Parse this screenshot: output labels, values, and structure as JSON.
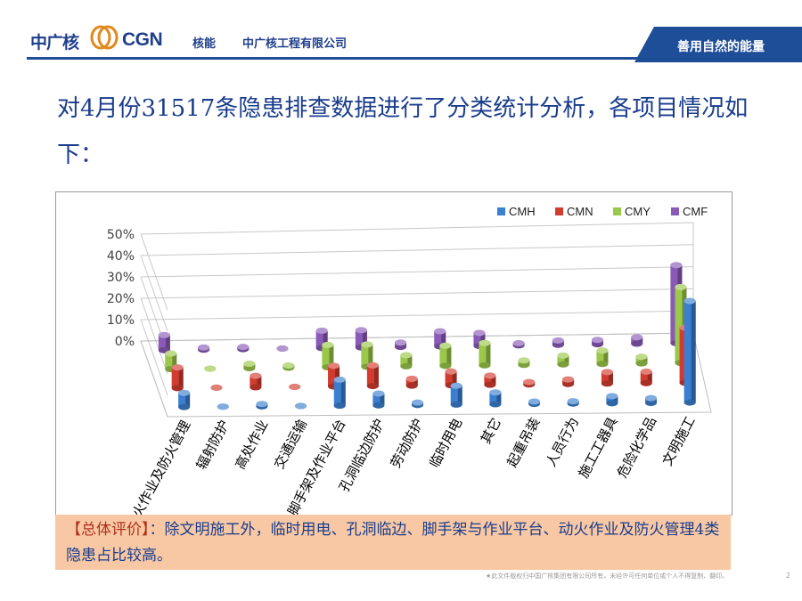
{
  "header": {
    "logo_cn": "中广核",
    "logo_en": "CGN",
    "logo_sub": "核能",
    "company": "中广核工程有限公司",
    "slogan": "善用自然的能量",
    "brand_color": "#1f4e99"
  },
  "title": "对4月份31517条隐患排查数据进行了分类统计分析，各项目情况如下：",
  "chart_data": {
    "type": "bar",
    "subtype": "3d-clustered-column",
    "categories": [
      "动火作业及防火管理",
      "辐射防护",
      "高处作业",
      "交通运输",
      "脚手架及作业平台",
      "孔洞临边防护",
      "劳动防护",
      "临时用电",
      "其它",
      "起重吊装",
      "人员行为",
      "施工工器具",
      "危险化学品",
      "文明施工"
    ],
    "series": [
      {
        "name": "CMH",
        "color": "#3b7fd0",
        "values": [
          6,
          0,
          1,
          0,
          11,
          5,
          1,
          8,
          5,
          1,
          1,
          3,
          2,
          43
        ]
      },
      {
        "name": "CMN",
        "color": "#d23c30",
        "values": [
          9,
          0,
          5,
          0,
          9,
          9,
          3,
          6,
          4,
          1,
          2,
          5,
          5,
          24
        ]
      },
      {
        "name": "CMY",
        "color": "#9bc84a",
        "values": [
          7,
          0,
          2,
          1,
          10,
          10,
          5,
          9,
          10,
          2,
          4,
          6,
          3,
          34
        ]
      },
      {
        "name": "CMF",
        "color": "#8a5ab8",
        "values": [
          7,
          1,
          1,
          0,
          8,
          8,
          2,
          7,
          6,
          1,
          2,
          2,
          3,
          36
        ]
      }
    ],
    "yticks": [
      "0%",
      "10%",
      "20%",
      "30%",
      "40%",
      "50%"
    ],
    "ylim": [
      0,
      50
    ],
    "grid": true,
    "legend_position": "top-right"
  },
  "evaluation": {
    "head": "【总体评价】",
    "text": "：除文明施工外，临时用电、孔洞临边、脚手架与作业平台、动火作业及防火管理4类隐患占比较高。"
  },
  "footer": {
    "copyright": "★此文件版权归中国广核集团有限公司所有，未经许可任何单位或个人不得复制、翻印。",
    "page": "2"
  }
}
